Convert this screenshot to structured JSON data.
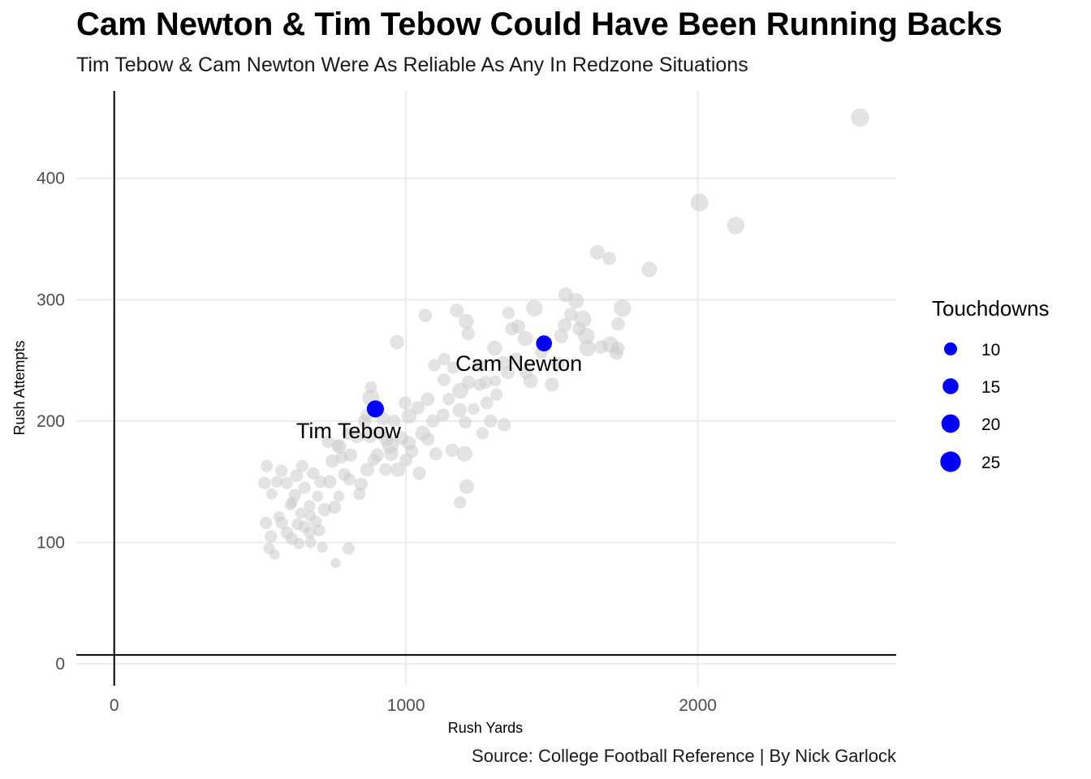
{
  "chart_data": {
    "type": "scatter",
    "title": "Cam Newton & Tim Tebow Could Have Been Running Backs",
    "subtitle": "Tim Tebow & Cam Newton Were As Reliable As Any In Redzone Situations",
    "caption": "Source: College Football Reference | By Nick Garlock",
    "xlabel": "Rush Yards",
    "ylabel": "Rush Attempts",
    "xlim": [
      -130,
      2680
    ],
    "ylim": [
      -18,
      472
    ],
    "x_ticks": [
      0,
      1000,
      2000
    ],
    "y_ticks": [
      0,
      100,
      200,
      300,
      400
    ],
    "grid": true,
    "size_legend": {
      "title": "Touchdowns",
      "position": "right",
      "values": [
        10,
        15,
        20,
        25
      ]
    },
    "colors": {
      "background": "#cccccc",
      "highlight": "#0000ff",
      "grid": "#ebebeb"
    },
    "highlight": [
      {
        "label": "Tim Tebow",
        "x": 895,
        "y": 210,
        "td": 23
      },
      {
        "label": "Cam Newton",
        "x": 1473,
        "y": 264,
        "td": 20
      }
    ],
    "background_points": [
      [
        2556,
        450,
        26
      ],
      [
        2006,
        380,
        25
      ],
      [
        2130,
        361,
        24
      ],
      [
        1834,
        325,
        19
      ],
      [
        1656,
        339,
        17
      ],
      [
        1697,
        334,
        14
      ],
      [
        1742,
        293,
        24
      ],
      [
        1727,
        280,
        14
      ],
      [
        1701,
        263,
        21
      ],
      [
        1721,
        256,
        15
      ],
      [
        1583,
        299,
        19
      ],
      [
        1547,
        304,
        17
      ],
      [
        1606,
        284,
        23
      ],
      [
        1618,
        270,
        22
      ],
      [
        1593,
        276,
        14
      ],
      [
        1622,
        260,
        21
      ],
      [
        1440,
        293,
        22
      ],
      [
        1385,
        278,
        15
      ],
      [
        1351,
        289,
        12
      ],
      [
        1363,
        276,
        14
      ],
      [
        1409,
        268,
        18
      ],
      [
        1532,
        270,
        16
      ],
      [
        1521,
        247,
        14
      ],
      [
        1500,
        230,
        16
      ],
      [
        1412,
        240,
        14
      ],
      [
        1427,
        233,
        17
      ],
      [
        1304,
        260,
        18
      ],
      [
        1349,
        240,
        15
      ],
      [
        1207,
        282,
        18
      ],
      [
        1213,
        272,
        14
      ],
      [
        1174,
        291,
        15
      ],
      [
        1066,
        287,
        14
      ],
      [
        1131,
        251,
        12
      ],
      [
        1162,
        244,
        12
      ],
      [
        1250,
        246,
        14
      ],
      [
        1186,
        225,
        20
      ],
      [
        1214,
        232,
        15
      ],
      [
        1184,
        209,
        16
      ],
      [
        1232,
        210,
        11
      ],
      [
        1203,
        199,
        13
      ],
      [
        1290,
        200,
        14
      ],
      [
        1310,
        222,
        12
      ],
      [
        1277,
        215,
        13
      ],
      [
        1337,
        197,
        14
      ],
      [
        1262,
        190,
        12
      ],
      [
        1158,
        176,
        14
      ],
      [
        1201,
        173,
        19
      ],
      [
        1208,
        146,
        17
      ],
      [
        1185,
        133,
        12
      ],
      [
        1102,
        173,
        13
      ],
      [
        1057,
        190,
        18
      ],
      [
        1075,
        185,
        14
      ],
      [
        1041,
        211,
        14
      ],
      [
        1074,
        218,
        15
      ],
      [
        1010,
        204,
        18
      ],
      [
        1046,
        157,
        14
      ],
      [
        1000,
        168,
        13
      ],
      [
        973,
        160,
        17
      ],
      [
        984,
        186,
        15
      ],
      [
        959,
        200,
        13
      ],
      [
        947,
        180,
        22
      ],
      [
        921,
        202,
        14
      ],
      [
        933,
        185,
        16
      ],
      [
        902,
        172,
        14
      ],
      [
        877,
        188,
        17
      ],
      [
        880,
        219,
        23
      ],
      [
        858,
        200,
        14
      ],
      [
        867,
        160,
        15
      ],
      [
        846,
        148,
        14
      ],
      [
        832,
        187,
        13
      ],
      [
        802,
        190,
        12
      ],
      [
        810,
        172,
        14
      ],
      [
        789,
        156,
        13
      ],
      [
        771,
        179,
        16
      ],
      [
        747,
        167,
        14
      ],
      [
        733,
        183,
        12
      ],
      [
        739,
        150,
        14
      ],
      [
        721,
        127,
        14
      ],
      [
        755,
        129,
        13
      ],
      [
        770,
        138,
        10
      ],
      [
        707,
        150,
        12
      ],
      [
        697,
        138,
        10
      ],
      [
        682,
        157,
        12
      ],
      [
        669,
        130,
        11
      ],
      [
        652,
        145,
        12
      ],
      [
        644,
        163,
        12
      ],
      [
        625,
        155,
        13
      ],
      [
        619,
        139,
        12
      ],
      [
        610,
        133,
        10
      ],
      [
        591,
        149,
        12
      ],
      [
        573,
        159,
        12
      ],
      [
        557,
        150,
        11
      ],
      [
        540,
        140,
        10
      ],
      [
        515,
        149,
        12
      ],
      [
        523,
        163,
        12
      ],
      [
        520,
        116,
        12
      ],
      [
        537,
        105,
        12
      ],
      [
        531,
        95,
        10
      ],
      [
        574,
        116,
        12
      ],
      [
        592,
        108,
        12
      ],
      [
        609,
        103,
        12
      ],
      [
        628,
        115,
        11
      ],
      [
        651,
        113,
        12
      ],
      [
        670,
        108,
        11
      ],
      [
        690,
        117,
        12
      ],
      [
        703,
        110,
        11
      ],
      [
        633,
        99,
        10
      ],
      [
        565,
        121,
        10
      ],
      [
        604,
        131,
        10
      ],
      [
        639,
        124,
        10
      ],
      [
        673,
        100,
        10
      ],
      [
        672,
        122,
        10
      ],
      [
        550,
        90,
        8
      ],
      [
        713,
        96,
        9
      ],
      [
        759,
        83,
        8
      ],
      [
        803,
        95,
        12
      ],
      [
        765,
        180,
        11
      ],
      [
        969,
        265,
        16
      ],
      [
        880,
        228,
        11
      ],
      [
        997,
        215,
        13
      ],
      [
        1010,
        182,
        15
      ],
      [
        950,
        173,
        16
      ],
      [
        1097,
        246,
        12
      ],
      [
        1130,
        234,
        13
      ],
      [
        1092,
        200,
        14
      ],
      [
        1127,
        205,
        13
      ],
      [
        1252,
        230,
        12
      ],
      [
        1273,
        232,
        13
      ],
      [
        1334,
        248,
        14
      ],
      [
        1306,
        233,
        10
      ],
      [
        1377,
        251,
        14
      ],
      [
        1465,
        257,
        14
      ],
      [
        1544,
        279,
        15
      ],
      [
        1565,
        288,
        14
      ],
      [
        1669,
        261,
        14
      ],
      [
        1726,
        260,
        14
      ],
      [
        1147,
        218,
        12
      ],
      [
        1020,
        175,
        13
      ],
      [
        840,
        140,
        12
      ],
      [
        890,
        168,
        12
      ],
      [
        930,
        160,
        13
      ],
      [
        865,
        205,
        12
      ],
      [
        912,
        190,
        13
      ],
      [
        779,
        170,
        12
      ],
      [
        806,
        152,
        12
      ]
    ]
  }
}
